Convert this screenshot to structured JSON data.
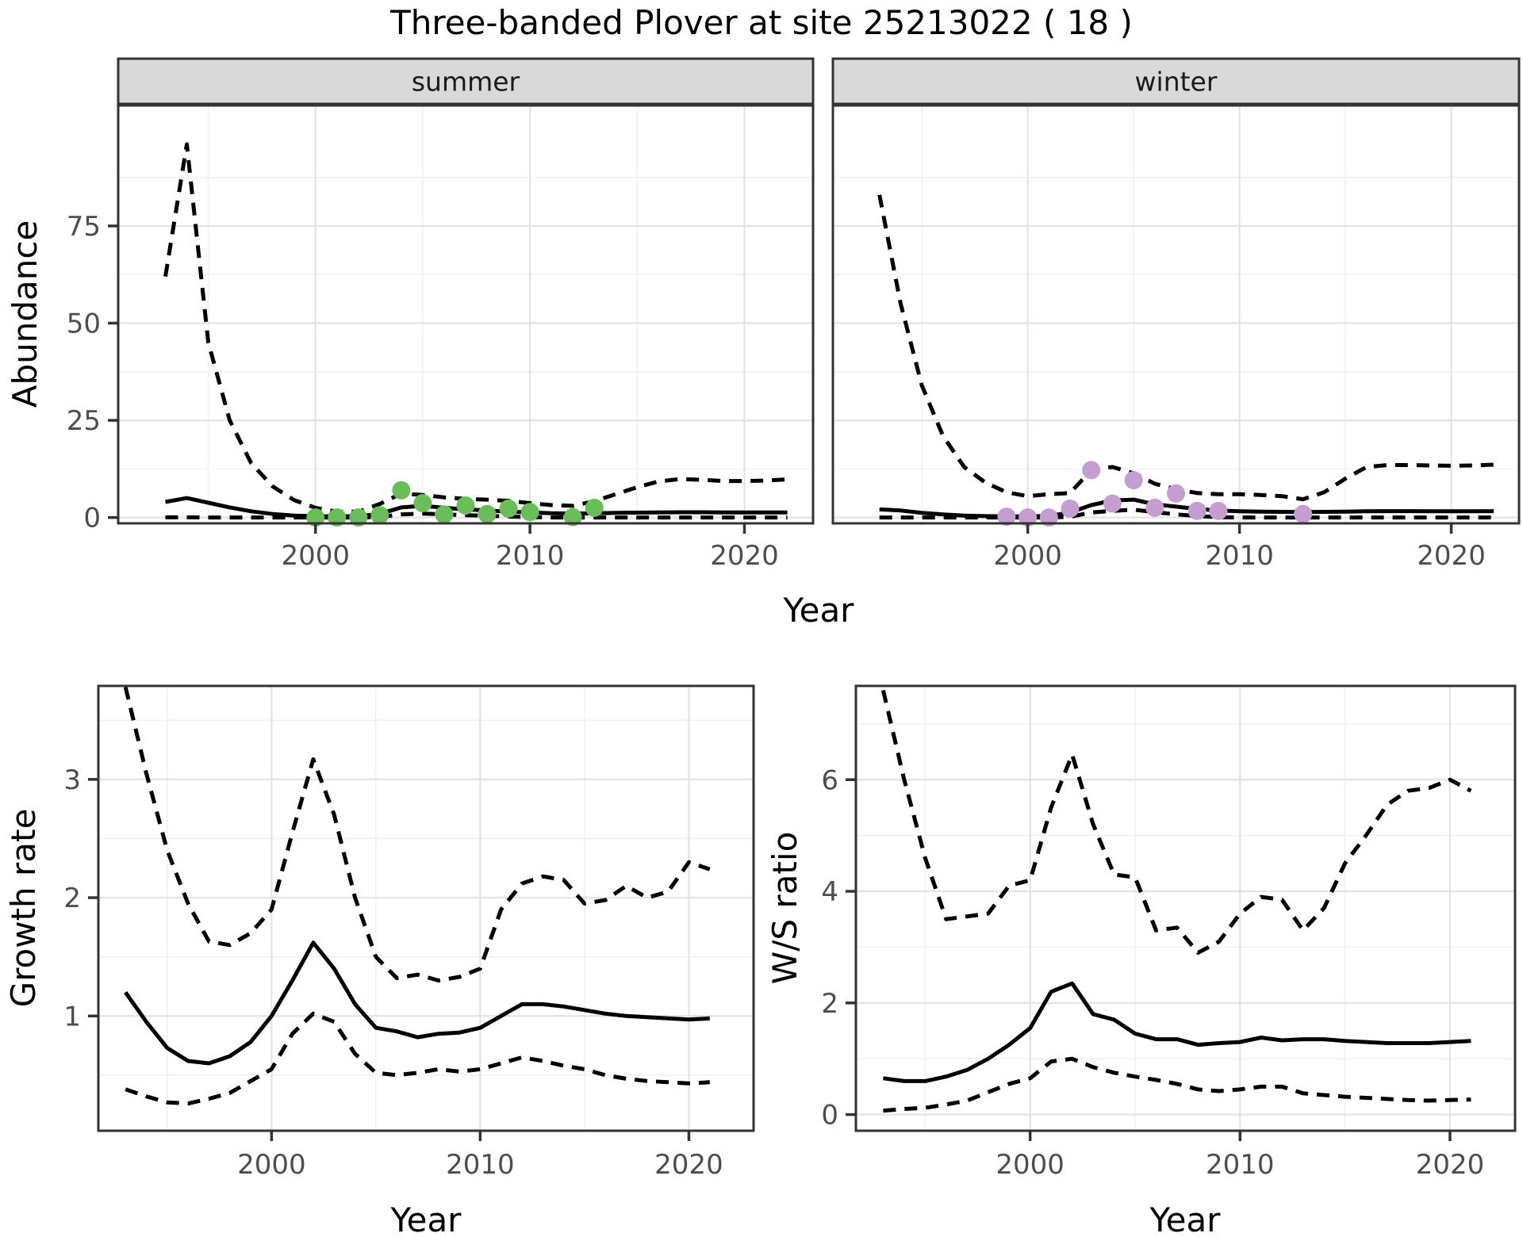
{
  "title": "Three-banded Plover at site 25213022 ( 18 )",
  "colors": {
    "summer_points": "#6ABE59",
    "winter_points": "#C49ED1",
    "line": "#000000",
    "panel_border": "#333333",
    "strip_background": "#D9D9D9",
    "grid_major": "#E3E3E3",
    "grid_minor": "#F1F1F1",
    "tick_label": "#4D4D4D",
    "axis_title": "#000000"
  },
  "chart_data": [
    {
      "type": "line",
      "facet_label": "summer",
      "title": "",
      "xlabel": "Year",
      "ylabel": "Abundance",
      "legend": "none",
      "grid": "on",
      "xlim": [
        1990.8,
        2023.2
      ],
      "ylim": [
        -1.5,
        106
      ],
      "xticks": [
        2000,
        2010,
        2020
      ],
      "yticks": [
        0,
        25,
        50,
        75
      ],
      "x": [
        1993,
        1994,
        1995,
        1996,
        1997,
        1998,
        1999,
        2000,
        2001,
        2002,
        2003,
        2004,
        2005,
        2006,
        2007,
        2008,
        2009,
        2010,
        2011,
        2012,
        2013,
        2014,
        2015,
        2016,
        2017,
        2018,
        2019,
        2020,
        2021,
        2022
      ],
      "series": [
        {
          "name": "upper_ci",
          "style": "dashed",
          "values": [
            62,
            96,
            45,
            25,
            14,
            8,
            4.5,
            2.5,
            1.5,
            1.5,
            3.5,
            6.2,
            5.8,
            5.2,
            4.8,
            4.6,
            4.3,
            3.7,
            3.2,
            3.0,
            4.2,
            6.0,
            7.8,
            9.3,
            9.9,
            9.7,
            9.4,
            9.4,
            9.5,
            9.8
          ]
        },
        {
          "name": "median",
          "style": "solid",
          "values": [
            4.0,
            5.0,
            3.8,
            2.6,
            1.6,
            0.9,
            0.5,
            0.35,
            0.3,
            0.35,
            0.9,
            2.6,
            3.0,
            2.5,
            2.1,
            1.8,
            1.5,
            1.3,
            1.1,
            1.0,
            1.1,
            1.2,
            1.25,
            1.3,
            1.35,
            1.35,
            1.3,
            1.3,
            1.3,
            1.3
          ]
        },
        {
          "name": "lower_ci",
          "style": "dashed",
          "values": [
            0.05,
            0.05,
            0,
            0,
            0,
            0,
            0,
            0,
            0,
            0,
            0.15,
            0.8,
            1.0,
            0.8,
            0.6,
            0.45,
            0.25,
            0.1,
            0,
            0,
            0,
            0,
            0,
            0,
            0,
            0,
            0,
            0,
            0,
            0
          ]
        }
      ],
      "points": {
        "name": "observed_counts",
        "color": "#6ABE59",
        "data": [
          [
            2000,
            0
          ],
          [
            2001,
            0
          ],
          [
            2002,
            0
          ],
          [
            2003,
            0.6
          ],
          [
            2004,
            7
          ],
          [
            2005,
            3.7
          ],
          [
            2006,
            0.8
          ],
          [
            2007,
            3.1
          ],
          [
            2008,
            0.9
          ],
          [
            2009,
            2.3
          ],
          [
            2010,
            1.4
          ],
          [
            2012,
            0.1
          ],
          [
            2013,
            2.5
          ]
        ]
      }
    },
    {
      "type": "line",
      "facet_label": "winter",
      "title": "",
      "xlabel": "Year",
      "ylabel": "Abundance",
      "legend": "none",
      "grid": "on",
      "xlim": [
        1990.8,
        2023.2
      ],
      "ylim": [
        -1.5,
        106
      ],
      "xticks": [
        2000,
        2010,
        2020
      ],
      "yticks": [
        0,
        25,
        50,
        75
      ],
      "x": [
        1993,
        1994,
        1995,
        1996,
        1997,
        1998,
        1999,
        2000,
        2001,
        2002,
        2003,
        2004,
        2005,
        2006,
        2007,
        2008,
        2009,
        2010,
        2011,
        2012,
        2013,
        2014,
        2015,
        2016,
        2017,
        2018,
        2019,
        2020,
        2021,
        2022
      ],
      "series": [
        {
          "name": "upper_ci",
          "style": "dashed",
          "values": [
            83,
            55,
            34,
            21,
            13,
            9,
            6.5,
            5.5,
            6,
            6.3,
            12.2,
            13,
            11.4,
            8.7,
            7.3,
            6.3,
            6.0,
            6.0,
            5.8,
            5.5,
            4.7,
            6.5,
            10,
            13,
            13.5,
            13.5,
            13.4,
            13.3,
            13.4,
            13.6
          ]
        },
        {
          "name": "median",
          "style": "solid",
          "values": [
            2.1,
            1.8,
            1.2,
            0.8,
            0.5,
            0.35,
            0.3,
            0.3,
            0.4,
            1.3,
            3.2,
            4.4,
            4.6,
            3.4,
            2.8,
            2.2,
            1.8,
            1.6,
            1.5,
            1.45,
            1.4,
            1.45,
            1.5,
            1.6,
            1.65,
            1.65,
            1.62,
            1.6,
            1.6,
            1.65
          ]
        },
        {
          "name": "lower_ci",
          "style": "dashed",
          "values": [
            0,
            0,
            0,
            0,
            0,
            0,
            0,
            0,
            0,
            0.2,
            1.3,
            1.7,
            2.0,
            1.4,
            0.8,
            0.4,
            0.1,
            0,
            0,
            0,
            0,
            0,
            0,
            0,
            0,
            0,
            0,
            0,
            0,
            0
          ]
        }
      ],
      "points": {
        "name": "observed_counts",
        "color": "#C49ED1",
        "data": [
          [
            1999,
            0.2
          ],
          [
            2000,
            0
          ],
          [
            2001,
            0
          ],
          [
            2002,
            2.3
          ],
          [
            2003,
            12.2
          ],
          [
            2004,
            3.6
          ],
          [
            2005,
            9.6
          ],
          [
            2006,
            2.5
          ],
          [
            2007,
            6.2
          ],
          [
            2008,
            1.7
          ],
          [
            2009,
            1.7
          ],
          [
            2013,
            0.9
          ]
        ]
      }
    },
    {
      "type": "line",
      "facet_label": "",
      "title": "",
      "xlabel": "Year",
      "ylabel": "Growth rate",
      "legend": "none",
      "grid": "on",
      "xlim": [
        1991.7,
        2023.1
      ],
      "ylim": [
        0.03,
        3.79
      ],
      "xticks": [
        2000,
        2010,
        2020
      ],
      "yticks": [
        1,
        2,
        3
      ],
      "x": [
        1993,
        1994,
        1995,
        1996,
        1997,
        1998,
        1999,
        2000,
        2001,
        2002,
        2003,
        2004,
        2005,
        2006,
        2007,
        2008,
        2009,
        2010,
        2011,
        2012,
        2013,
        2014,
        2015,
        2016,
        2017,
        2018,
        2019,
        2020,
        2021
      ],
      "series": [
        {
          "name": "upper_ci",
          "style": "dashed",
          "values": [
            3.78,
            3.05,
            2.4,
            1.95,
            1.63,
            1.6,
            1.7,
            1.9,
            2.55,
            3.17,
            2.7,
            2.0,
            1.5,
            1.32,
            1.35,
            1.3,
            1.33,
            1.4,
            1.9,
            2.12,
            2.18,
            2.15,
            1.95,
            1.98,
            2.1,
            2.0,
            2.05,
            2.3,
            2.24
          ]
        },
        {
          "name": "median",
          "style": "solid",
          "values": [
            1.2,
            0.95,
            0.73,
            0.62,
            0.6,
            0.66,
            0.78,
            1.0,
            1.3,
            1.62,
            1.4,
            1.1,
            0.9,
            0.87,
            0.82,
            0.85,
            0.86,
            0.9,
            1.0,
            1.1,
            1.1,
            1.08,
            1.05,
            1.02,
            1.0,
            0.99,
            0.98,
            0.97,
            0.98
          ]
        },
        {
          "name": "lower_ci",
          "style": "dashed",
          "values": [
            0.38,
            0.32,
            0.27,
            0.26,
            0.3,
            0.35,
            0.45,
            0.55,
            0.85,
            1.02,
            0.95,
            0.68,
            0.52,
            0.5,
            0.52,
            0.55,
            0.53,
            0.55,
            0.6,
            0.65,
            0.62,
            0.58,
            0.55,
            0.5,
            0.47,
            0.45,
            0.44,
            0.43,
            0.44
          ]
        }
      ],
      "points": null
    },
    {
      "type": "line",
      "facet_label": "",
      "title": "",
      "xlabel": "Year",
      "ylabel": "W/S ratio",
      "legend": "none",
      "grid": "on",
      "xlim": [
        1991.7,
        2023.1
      ],
      "ylim": [
        -0.29,
        7.68
      ],
      "xticks": [
        2000,
        2010,
        2020
      ],
      "yticks": [
        0,
        2,
        4,
        6
      ],
      "x": [
        1993,
        1994,
        1995,
        1996,
        1997,
        1998,
        1999,
        2000,
        2001,
        2002,
        2003,
        2004,
        2005,
        2006,
        2007,
        2008,
        2009,
        2010,
        2011,
        2012,
        2013,
        2014,
        2015,
        2016,
        2017,
        2018,
        2019,
        2020,
        2021
      ],
      "series": [
        {
          "name": "upper_ci",
          "style": "dashed",
          "values": [
            7.6,
            6.0,
            4.6,
            3.5,
            3.55,
            3.6,
            4.1,
            4.2,
            5.5,
            6.45,
            5.2,
            4.3,
            4.25,
            3.3,
            3.35,
            2.9,
            3.1,
            3.6,
            3.9,
            3.85,
            3.3,
            3.7,
            4.5,
            5.0,
            5.55,
            5.8,
            5.85,
            6.0,
            5.8
          ]
        },
        {
          "name": "median",
          "style": "solid",
          "values": [
            0.65,
            0.6,
            0.6,
            0.68,
            0.8,
            1.0,
            1.25,
            1.55,
            2.2,
            2.35,
            1.8,
            1.7,
            1.45,
            1.35,
            1.35,
            1.25,
            1.28,
            1.3,
            1.38,
            1.33,
            1.35,
            1.35,
            1.32,
            1.3,
            1.28,
            1.28,
            1.28,
            1.3,
            1.32
          ]
        },
        {
          "name": "lower_ci",
          "style": "dashed",
          "values": [
            0.07,
            0.1,
            0.12,
            0.18,
            0.25,
            0.4,
            0.55,
            0.65,
            0.95,
            1.0,
            0.85,
            0.75,
            0.68,
            0.62,
            0.55,
            0.45,
            0.42,
            0.45,
            0.5,
            0.5,
            0.38,
            0.35,
            0.32,
            0.3,
            0.28,
            0.26,
            0.25,
            0.26,
            0.27
          ]
        }
      ],
      "points": null
    }
  ]
}
